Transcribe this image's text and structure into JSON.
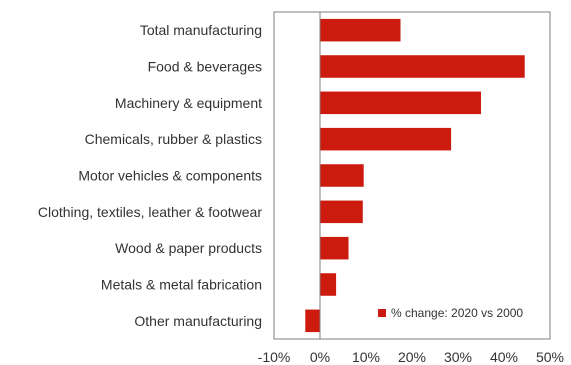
{
  "chart_data": {
    "type": "bar",
    "orientation": "horizontal",
    "categories": [
      "Total manufacturing",
      "Food & beverages",
      "Machinery & equipment",
      "Chemicals, rubber & plastics",
      "Motor vehicles & components",
      "Clothing, textiles, leather & footwear",
      "Wood & paper products",
      "Metals & metal fabrication",
      "Other manufacturing"
    ],
    "series": [
      {
        "name": "% change: 2020 vs 2000",
        "values": [
          17.5,
          44.5,
          35,
          28.5,
          9.5,
          9.3,
          6.2,
          3.5,
          -3.2
        ],
        "color": "#cc1a0e"
      }
    ],
    "xlim": [
      -10,
      50
    ],
    "xticks": [
      -10,
      0,
      10,
      20,
      30,
      40,
      50
    ],
    "tick_labels": [
      "-10%",
      "0%",
      "10%",
      "20%",
      "30%",
      "40%",
      "50%"
    ],
    "legend_position": "bottom-right",
    "grid": false
  }
}
